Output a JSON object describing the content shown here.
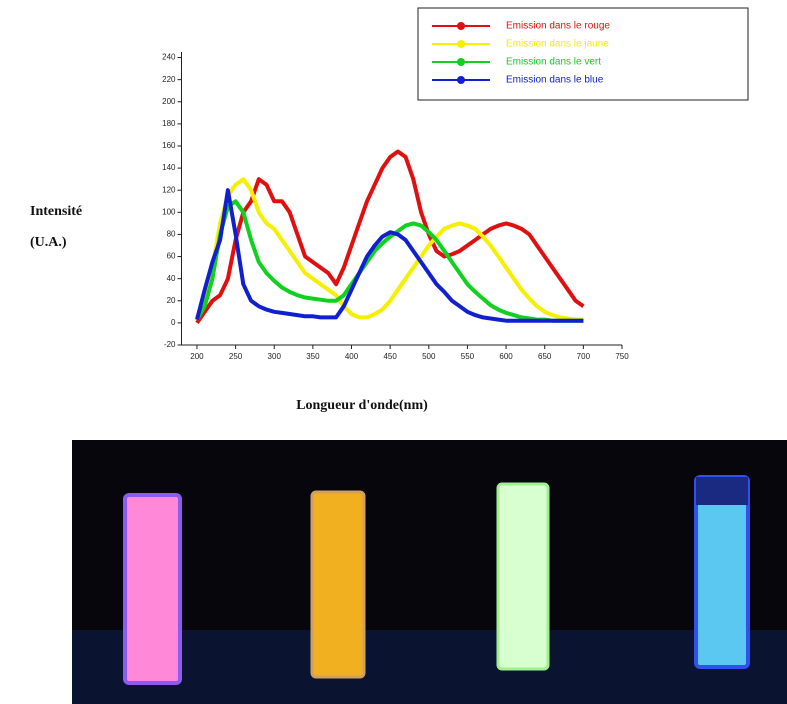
{
  "chart_data": {
    "type": "line",
    "ylabel": [
      "Intensité",
      "(U.A.)"
    ],
    "xlabel": "Longueur d'onde(nm)",
    "x": [
      200,
      210,
      220,
      230,
      240,
      250,
      260,
      270,
      280,
      290,
      300,
      310,
      320,
      330,
      340,
      350,
      360,
      370,
      380,
      390,
      400,
      410,
      420,
      430,
      440,
      450,
      460,
      470,
      480,
      490,
      500,
      510,
      520,
      530,
      540,
      550,
      560,
      570,
      580,
      590,
      600,
      610,
      620,
      630,
      640,
      650,
      660,
      670,
      680,
      690,
      700
    ],
    "series": [
      {
        "name": "Emission dans le rouge",
        "color": "#e01010",
        "marker": "circle",
        "values": [
          0,
          10,
          20,
          25,
          40,
          75,
          100,
          110,
          130,
          125,
          110,
          110,
          100,
          80,
          60,
          55,
          50,
          45,
          35,
          50,
          70,
          90,
          110,
          125,
          140,
          150,
          155,
          150,
          130,
          100,
          80,
          65,
          60,
          62,
          65,
          70,
          75,
          80,
          85,
          88,
          90,
          88,
          85,
          80,
          70,
          60,
          50,
          40,
          30,
          20,
          15
        ]
      },
      {
        "name": "Emission dans le jaune",
        "color": "#f5ef00",
        "marker": "square",
        "values": [
          5,
          20,
          50,
          90,
          115,
          125,
          130,
          120,
          100,
          90,
          85,
          75,
          65,
          55,
          45,
          40,
          35,
          30,
          25,
          15,
          8,
          5,
          5,
          8,
          12,
          20,
          30,
          40,
          50,
          60,
          70,
          78,
          85,
          88,
          90,
          88,
          85,
          78,
          70,
          60,
          50,
          40,
          30,
          22,
          15,
          10,
          7,
          5,
          4,
          3,
          3
        ]
      },
      {
        "name": "Emission dans le vert",
        "color": "#10d020",
        "marker": "star",
        "values": [
          3,
          15,
          40,
          80,
          105,
          110,
          100,
          75,
          55,
          45,
          38,
          32,
          28,
          25,
          23,
          22,
          21,
          20,
          20,
          25,
          35,
          45,
          55,
          65,
          72,
          78,
          83,
          88,
          90,
          88,
          82,
          75,
          65,
          55,
          45,
          35,
          28,
          22,
          16,
          12,
          9,
          7,
          5,
          4,
          3,
          3,
          2,
          2,
          2,
          2,
          2
        ]
      },
      {
        "name": "Emission dans le blue",
        "color": "#1020d0",
        "marker": "triangle",
        "values": [
          3,
          30,
          55,
          75,
          120,
          80,
          35,
          20,
          15,
          12,
          10,
          9,
          8,
          7,
          6,
          6,
          5,
          5,
          5,
          15,
          30,
          45,
          60,
          70,
          78,
          82,
          80,
          75,
          65,
          55,
          45,
          35,
          28,
          20,
          15,
          10,
          7,
          5,
          4,
          3,
          2,
          2,
          2,
          2,
          2,
          2,
          2,
          2,
          2,
          2,
          2
        ]
      }
    ],
    "xlim": [
      180,
      750
    ],
    "xticks": [
      200,
      250,
      300,
      350,
      400,
      450,
      500,
      550,
      600,
      650,
      700,
      750
    ],
    "ylim": [
      -20,
      245
    ],
    "yticks": [
      -20,
      0,
      20,
      40,
      60,
      80,
      100,
      120,
      140,
      160,
      180,
      200,
      220,
      240
    ]
  }
}
